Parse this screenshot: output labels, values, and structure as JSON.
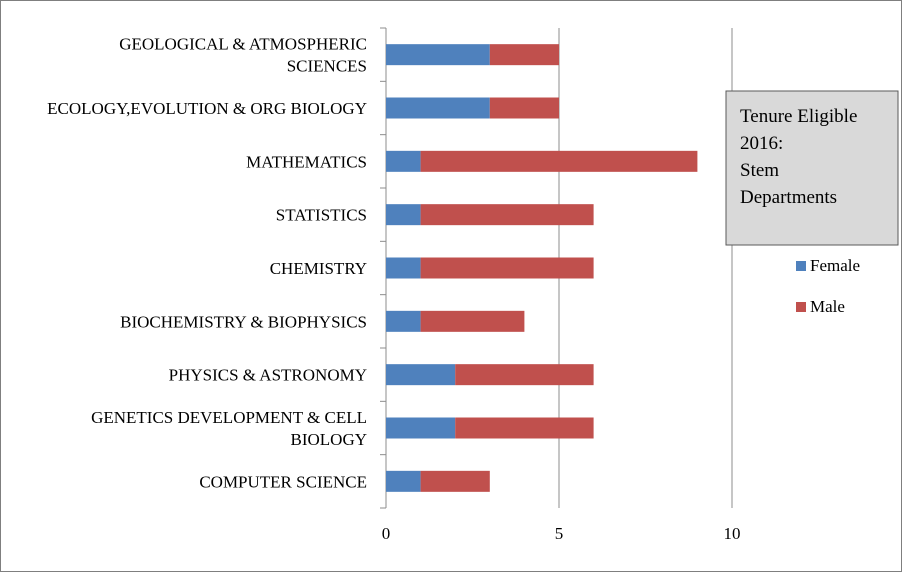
{
  "chart_data": {
    "type": "bar",
    "orientation": "horizontal",
    "stacked": true,
    "title_lines": [
      "Tenure Eligible",
      "2016:",
      "Stem",
      "Departments"
    ],
    "categories": [
      [
        "GEOLOGICAL & ATMOSPHERIC",
        "SCIENCES"
      ],
      [
        "ECOLOGY,EVOLUTION & ORG BIOLOGY"
      ],
      [
        "MATHEMATICS"
      ],
      [
        "STATISTICS"
      ],
      [
        "CHEMISTRY"
      ],
      [
        "BIOCHEMISTRY & BIOPHYSICS"
      ],
      [
        "PHYSICS & ASTRONOMY"
      ],
      [
        "GENETICS DEVELOPMENT & CELL",
        "BIOLOGY"
      ],
      [
        "COMPUTER SCIENCE"
      ]
    ],
    "series": [
      {
        "name": "Female",
        "color": "#4f81bd",
        "values": [
          3,
          3,
          1,
          1,
          1,
          1,
          2,
          2,
          1
        ]
      },
      {
        "name": "Male",
        "color": "#c0504d",
        "values": [
          2,
          2,
          8,
          5,
          5,
          3,
          4,
          4,
          2
        ]
      }
    ],
    "xlim": [
      0,
      15
    ],
    "x_ticks": [
      0,
      5,
      10
    ],
    "grid": "vertical major gridlines",
    "legend_position": "right",
    "title_box_fill": "#d9d9d9"
  }
}
